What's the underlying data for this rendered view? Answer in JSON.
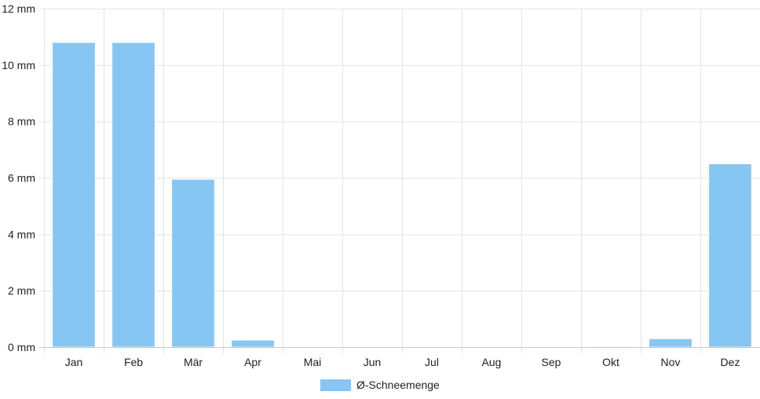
{
  "chart_data": {
    "type": "bar",
    "categories": [
      "Jan",
      "Feb",
      "Mär",
      "Apr",
      "Mai",
      "Jun",
      "Jul",
      "Aug",
      "Sep",
      "Okt",
      "Nov",
      "Dez"
    ],
    "series": [
      {
        "name": "Ø-Schneemenge",
        "color": "#86c6f2",
        "values": [
          10.8,
          10.8,
          5.95,
          0.25,
          0,
          0,
          0,
          0,
          0,
          0.03,
          0.3,
          6.5
        ]
      }
    ],
    "ylim": [
      0,
      12
    ],
    "yticks": [
      0,
      2,
      4,
      6,
      8,
      10,
      12
    ],
    "yunit": "mm",
    "ytick_labels": [
      "0 mm",
      "2 mm",
      "4 mm",
      "6 mm",
      "8 mm",
      "10 mm",
      "12 mm"
    ],
    "grid": true,
    "legend_position": "bottom"
  }
}
